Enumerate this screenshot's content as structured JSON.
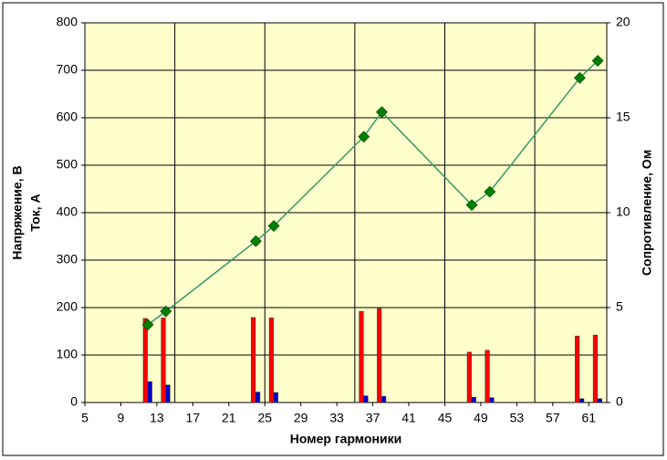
{
  "chart_data": {
    "type": "bar",
    "x_label": "Номер гармоники",
    "y_label_lines": [
      "Напряжение, В",
      "Ток, А"
    ],
    "y2_label": "Сопротивление, Ом",
    "x": [
      12,
      14,
      24,
      26,
      36,
      38,
      48,
      50,
      60,
      62
    ],
    "series": [
      {
        "type": "bar",
        "color": "#ff0000",
        "values": [
          177,
          178,
          179,
          178,
          192,
          198,
          106,
          110,
          140,
          142
        ]
      },
      {
        "type": "bar",
        "color": "#0000cc",
        "values": [
          44,
          37,
          22,
          21,
          14,
          13,
          11,
          10,
          8,
          8
        ]
      },
      {
        "type": "line",
        "axis": "y2",
        "color": "#339966",
        "marker_color": "#008000",
        "values": [
          4.1,
          4.8,
          8.5,
          9.3,
          14.0,
          15.3,
          10.4,
          11.1,
          17.1,
          18.0
        ]
      }
    ],
    "xlim": [
      5,
      63
    ],
    "xticks": [
      5,
      9,
      13,
      17,
      21,
      25,
      29,
      33,
      37,
      41,
      45,
      49,
      53,
      57,
      61
    ],
    "xgrid": [
      15,
      25,
      35,
      45,
      55
    ],
    "ylim": [
      0,
      800
    ],
    "yticks": [
      0,
      100,
      200,
      300,
      400,
      500,
      600,
      700,
      800
    ],
    "y2lim": [
      0,
      20
    ],
    "y2ticks": [
      0,
      5,
      10,
      15,
      20
    ],
    "grid": true,
    "plot_background": "#ffffcc"
  }
}
